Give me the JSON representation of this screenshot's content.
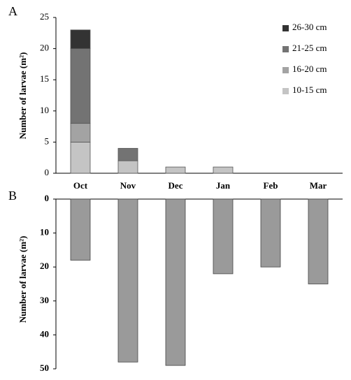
{
  "chart_data": [
    {
      "type": "stacked-bar",
      "panel_label": "A",
      "ylabel": "Number of larvae (m²)",
      "categories": [
        "Oct",
        "Nov",
        "Dec",
        "Jan",
        "Feb",
        "Mar"
      ],
      "series": [
        {
          "name": "10-15 cm",
          "color": "#c4c4c4",
          "values": [
            5,
            2,
            1,
            1,
            0,
            0
          ]
        },
        {
          "name": "16-20 cm",
          "color": "#a3a3a3",
          "values": [
            3,
            0,
            0,
            0,
            0,
            0
          ]
        },
        {
          "name": "21-25 cm",
          "color": "#737373",
          "values": [
            12,
            2,
            0,
            0,
            0,
            0
          ]
        },
        {
          "name": "26-30 cm",
          "color": "#333333",
          "values": [
            3,
            0,
            0,
            0,
            0,
            0
          ]
        }
      ],
      "ylim": [
        0,
        25
      ],
      "yticks": [
        0,
        5,
        10,
        15,
        20,
        25
      ]
    },
    {
      "type": "inverted-bar",
      "panel_label": "B",
      "ylabel": "Number of larvae (m²)",
      "color": "#9a9a9a",
      "values": [
        18,
        48,
        49,
        22,
        20,
        25
      ],
      "ylim": [
        0,
        50
      ],
      "yticks": [
        0,
        10,
        20,
        30,
        40,
        50
      ]
    }
  ]
}
